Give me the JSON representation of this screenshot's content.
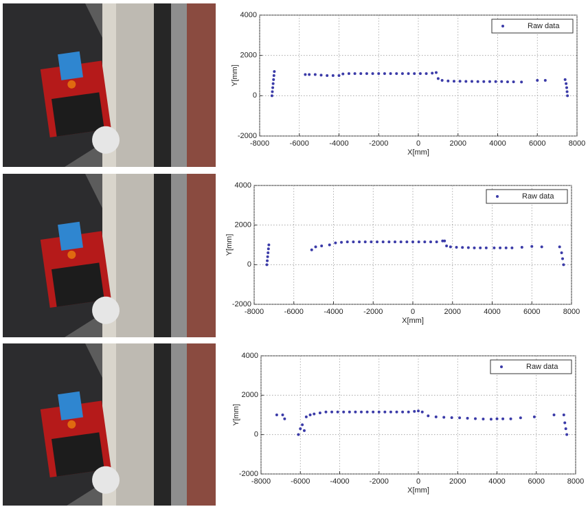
{
  "chart_data": [
    {
      "type": "scatter",
      "xlabel": "X[mm]",
      "ylabel": "Y[mm]",
      "xlim": [
        -8000,
        8000
      ],
      "ylim": [
        -2000,
        4000
      ],
      "xticks": [
        -8000,
        -6000,
        -4000,
        -2000,
        0,
        2000,
        4000,
        6000,
        8000
      ],
      "yticks": [
        -2000,
        0,
        2000,
        4000
      ],
      "grid": true,
      "legend": "upper right",
      "x": [
        -7380,
        -7360,
        -7340,
        -7320,
        -7300,
        -7280,
        -7260,
        -5700,
        -5500,
        -5200,
        -4900,
        -4600,
        -4300,
        -4000,
        -3800,
        -3500,
        -3200,
        -2900,
        -2600,
        -2300,
        -2000,
        -1700,
        -1400,
        -1100,
        -800,
        -500,
        -200,
        100,
        400,
        700,
        900,
        1000,
        1200,
        1500,
        1800,
        2100,
        2400,
        2700,
        3000,
        3300,
        3600,
        3900,
        4200,
        4500,
        4800,
        5200,
        6000,
        6400,
        7400,
        7450,
        7480,
        7500,
        7520
      ],
      "series": [
        {
          "name": "Raw data",
          "color": "#3b3ba8",
          "values": [
            0,
            200,
            400,
            600,
            800,
            1000,
            1200,
            1050,
            1050,
            1050,
            1020,
            1000,
            1000,
            1000,
            1080,
            1100,
            1100,
            1100,
            1100,
            1100,
            1100,
            1100,
            1100,
            1100,
            1100,
            1100,
            1100,
            1100,
            1100,
            1120,
            1150,
            850,
            760,
            730,
            720,
            720,
            710,
            710,
            700,
            700,
            700,
            700,
            700,
            690,
            690,
            680,
            760,
            760,
            800,
            600,
            400,
            200,
            0
          ]
        }
      ]
    },
    {
      "type": "scatter",
      "xlabel": "X[mm]",
      "ylabel": "Y[mm]",
      "xlim": [
        -8000,
        8000
      ],
      "ylim": [
        -2000,
        4000
      ],
      "xticks": [
        -8000,
        -6000,
        -4000,
        -2000,
        0,
        2000,
        4000,
        6000,
        8000
      ],
      "yticks": [
        -2000,
        0,
        2000,
        4000
      ],
      "grid": true,
      "legend": "upper right",
      "x": [
        -7360,
        -7340,
        -7320,
        -7300,
        -7280,
        -7260,
        -5100,
        -4900,
        -4600,
        -4200,
        -3900,
        -3600,
        -3300,
        -3000,
        -2700,
        -2400,
        -2100,
        -1800,
        -1500,
        -1200,
        -900,
        -600,
        -300,
        0,
        300,
        600,
        900,
        1200,
        1500,
        1600,
        1700,
        1900,
        2200,
        2500,
        2800,
        3100,
        3400,
        3700,
        4100,
        4400,
        4700,
        5000,
        5500,
        6000,
        6500,
        7400,
        7500,
        7550,
        7600
      ],
      "series": [
        {
          "name": "Raw data",
          "color": "#3b3ba8",
          "values": [
            0,
            200,
            400,
            600,
            800,
            1000,
            750,
            900,
            950,
            1000,
            1100,
            1130,
            1150,
            1150,
            1150,
            1150,
            1150,
            1150,
            1150,
            1150,
            1150,
            1150,
            1150,
            1150,
            1150,
            1150,
            1150,
            1150,
            1200,
            1200,
            950,
            900,
            880,
            870,
            860,
            850,
            850,
            850,
            850,
            850,
            850,
            850,
            880,
            920,
            900,
            900,
            600,
            300,
            0
          ]
        }
      ]
    },
    {
      "type": "scatter",
      "xlabel": "X[mm]",
      "ylabel": "Y[mm]",
      "xlim": [
        -8000,
        8000
      ],
      "ylim": [
        -2000,
        4000
      ],
      "xticks": [
        -8000,
        -6000,
        -4000,
        -2000,
        0,
        2000,
        4000,
        6000,
        8000
      ],
      "yticks": [
        -2000,
        0,
        2000,
        4000
      ],
      "grid": true,
      "legend": "upper right",
      "x": [
        -7200,
        -6900,
        -6800,
        -6100,
        -6000,
        -5900,
        -5800,
        -5700,
        -5500,
        -5300,
        -5000,
        -4700,
        -4400,
        -4100,
        -3800,
        -3500,
        -3200,
        -2900,
        -2600,
        -2300,
        -2000,
        -1700,
        -1400,
        -1100,
        -800,
        -500,
        -200,
        0,
        200,
        500,
        900,
        1300,
        1700,
        2100,
        2500,
        2900,
        3300,
        3700,
        4000,
        4300,
        4700,
        5200,
        5900,
        6900,
        7400,
        7450,
        7500,
        7550
      ],
      "series": [
        {
          "name": "Raw data",
          "color": "#3b3ba8",
          "values": [
            1000,
            1000,
            800,
            0,
            300,
            500,
            200,
            900,
            1000,
            1050,
            1100,
            1150,
            1150,
            1150,
            1150,
            1150,
            1150,
            1150,
            1150,
            1150,
            1150,
            1150,
            1150,
            1150,
            1150,
            1150,
            1180,
            1200,
            1150,
            950,
            900,
            880,
            860,
            850,
            830,
            810,
            790,
            780,
            800,
            800,
            800,
            850,
            900,
            1000,
            1000,
            600,
            300,
            0
          ]
        }
      ]
    }
  ]
}
